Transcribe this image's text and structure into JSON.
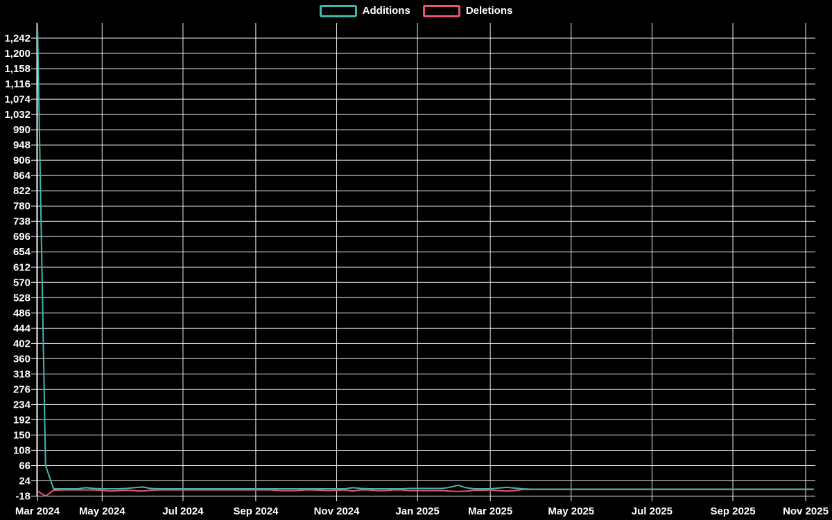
{
  "colors": {
    "background": "#000000",
    "grid": "#ffffff",
    "label": "#ffffff",
    "additions": "#3fb7b0",
    "deletions": "#ea5570"
  },
  "legend": {
    "items": [
      {
        "label": "Additions",
        "color": "#3fb7b0"
      },
      {
        "label": "Deletions",
        "color": "#ea5570"
      }
    ]
  },
  "chart_data": {
    "type": "line",
    "title": "",
    "xlabel": "",
    "ylabel": "",
    "x_axis": {
      "unit": "week",
      "tick_labels": [
        "Mar 2024",
        "May 2024",
        "Jul 2024",
        "Sep 2024",
        "Nov 2024",
        "Jan 2025",
        "Mar 2025",
        "May 2025",
        "Jul 2025",
        "Sep 2025",
        "Nov 2025"
      ],
      "tick_week_indices": [
        0,
        8,
        18,
        27,
        37,
        47,
        56,
        66,
        76,
        86,
        95
      ]
    },
    "y_axis": {
      "min": -18,
      "max": 1284,
      "interval": 42,
      "tick_labels": [
        "1,242",
        "1,200",
        "1,158",
        "1,116",
        "1,074",
        "1,032",
        "990",
        "948",
        "906",
        "864",
        "822",
        "780",
        "738",
        "696",
        "654",
        "612",
        "570",
        "528",
        "486",
        "444",
        "402",
        "360",
        "318",
        "276",
        "234",
        "192",
        "150",
        "108",
        "66",
        "24",
        "-18"
      ]
    },
    "grid": true,
    "legend_position": "top-center",
    "series": [
      {
        "name": "Additions",
        "color": "#3fb7b0",
        "values": [
          1284,
          66,
          2,
          2,
          2,
          2,
          5,
          3,
          2,
          2,
          2,
          3,
          5,
          7,
          3,
          2,
          2,
          2,
          2,
          2,
          2,
          2,
          2,
          2,
          2,
          2,
          2,
          2,
          2,
          2,
          2,
          2,
          2,
          2,
          2,
          2,
          2,
          2,
          2,
          5,
          3,
          2,
          2,
          2,
          2,
          2,
          3,
          3,
          3,
          3,
          3,
          6,
          12,
          5,
          2,
          2,
          2,
          4,
          6,
          4,
          2,
          1,
          1,
          1,
          1,
          1,
          1,
          1,
          1,
          1,
          1,
          1,
          1,
          1,
          1,
          1,
          1,
          1,
          1,
          1,
          1,
          1,
          1,
          1,
          1,
          1,
          1,
          1,
          1,
          1,
          1,
          1,
          1,
          1,
          1,
          1,
          1
        ]
      },
      {
        "name": "Deletions",
        "color": "#ea5570",
        "values": [
          -4,
          -18,
          -2,
          -1,
          -1,
          -1,
          -1,
          -1,
          -2,
          -4,
          -3,
          -2,
          -3,
          -4,
          -2,
          -1,
          -1,
          -1,
          -1,
          -1,
          -1,
          -1,
          -1,
          -1,
          -1,
          -1,
          -1,
          -1,
          -1,
          -1,
          -3,
          -3,
          -3,
          -1,
          -1,
          -2,
          -3,
          -2,
          -1,
          -4,
          -1,
          -1,
          -3,
          -3,
          -1,
          -1,
          -3,
          -3,
          -3,
          -3,
          -3,
          -4,
          -5,
          -4,
          -2,
          -2,
          -1,
          -3,
          -4,
          -3,
          0,
          0,
          0,
          0,
          0,
          0,
          0,
          0,
          0,
          0,
          0,
          0,
          0,
          0,
          0,
          0,
          0,
          0,
          0,
          0,
          0,
          0,
          0,
          0,
          0,
          0,
          0,
          0,
          0,
          0,
          0,
          0,
          0,
          0,
          0,
          0,
          0
        ]
      }
    ]
  }
}
